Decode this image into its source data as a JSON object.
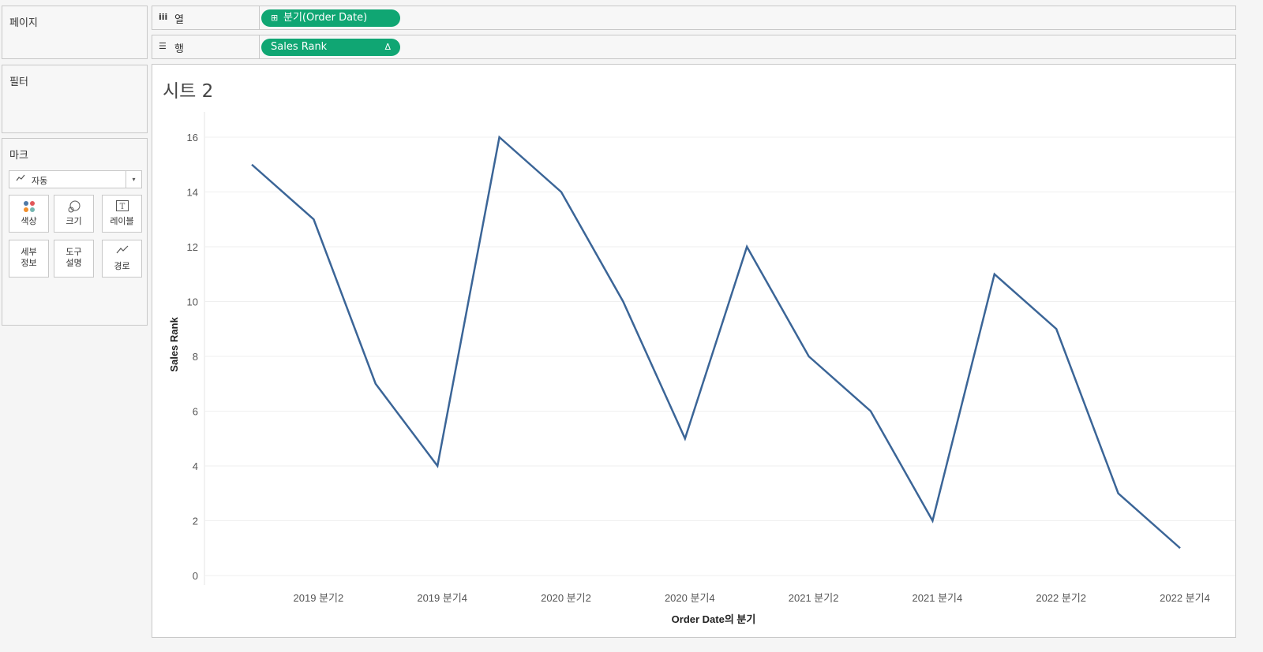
{
  "panels": {
    "pages": "페이지",
    "filters": "필터",
    "marks": "마크"
  },
  "marks_card": {
    "mark_type": "자동",
    "buttons": [
      {
        "label": "색상",
        "icon": "color-dots-icon"
      },
      {
        "label": "크기",
        "icon": "size-circles-icon"
      },
      {
        "label": "레이블",
        "icon": "label-t-icon"
      },
      {
        "label": "세부 정보",
        "icon": "detail-icon"
      },
      {
        "label": "도구 설명",
        "icon": "tooltip-icon"
      },
      {
        "label": "경로",
        "icon": "path-line-icon"
      }
    ]
  },
  "shelves": {
    "columns": {
      "label": "열",
      "pill": "분기(Order Date)"
    },
    "rows": {
      "label": "행",
      "pill": "Sales Rank",
      "pill_suffix": "Δ"
    }
  },
  "sheet": {
    "title": "시트 2"
  },
  "colors": {
    "pill": "#10a673",
    "line": "#3b6597"
  },
  "chart_data": {
    "type": "line",
    "title": "시트 2",
    "xlabel": "Order Date의 분기",
    "ylabel": "Sales Rank",
    "categories": [
      "2019 분기1",
      "2019 분기2",
      "2019 분기3",
      "2019 분기4",
      "2020 분기1",
      "2020 분기2",
      "2020 분기3",
      "2020 분기4",
      "2021 분기1",
      "2021 분기2",
      "2021 분기3",
      "2021 분기4",
      "2022 분기1",
      "2022 분기2",
      "2022 분기3",
      "2022 분기4"
    ],
    "x_tick_labels": [
      "2019 분기2",
      "2019 분기4",
      "2020 분기2",
      "2020 분기4",
      "2021 분기2",
      "2021 분기4",
      "2022 분기2",
      "2022 분기4"
    ],
    "values": [
      15,
      13,
      7,
      4,
      16,
      14,
      10,
      5,
      12,
      8,
      6,
      2,
      11,
      9,
      3,
      1
    ],
    "ylim": [
      0,
      17
    ],
    "y_ticks": [
      0,
      2,
      4,
      6,
      8,
      10,
      12,
      14,
      16
    ],
    "grid": "horizontal"
  }
}
